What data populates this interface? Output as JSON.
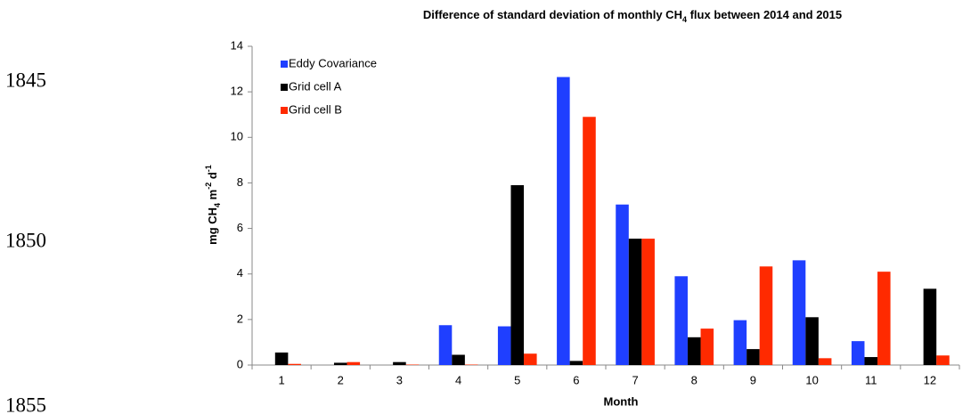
{
  "line_numbers": [
    "1845",
    "1850",
    "1855"
  ],
  "chart_data": {
    "type": "bar",
    "title": [
      {
        "text": "Difference of standard deviation of monthly CH"
      },
      {
        "text": "4",
        "sub": true
      },
      {
        "text": " flux between 2014 and 2015"
      }
    ],
    "ylabel": [
      {
        "text": "mg CH"
      },
      {
        "text": "4",
        "sub": true
      },
      {
        "text": " m"
      },
      {
        "text": "-2",
        "sup": true
      },
      {
        "text": " d"
      },
      {
        "text": "-1",
        "sup": true
      }
    ],
    "xlabel": "Month",
    "categories": [
      "1",
      "2",
      "3",
      "4",
      "5",
      "6",
      "7",
      "8",
      "9",
      "10",
      "11",
      "12"
    ],
    "series": [
      {
        "name": "Eddy Covariance",
        "color": "#1f3fff",
        "values": [
          0,
          0,
          0,
          1.75,
          1.7,
          12.65,
          7.05,
          3.9,
          1.97,
          4.6,
          1.05,
          0
        ]
      },
      {
        "name": "Grid cell A",
        "color": "#000000",
        "values": [
          0.55,
          0.1,
          0.13,
          0.45,
          7.9,
          0.18,
          5.55,
          1.22,
          0.7,
          2.1,
          0.35,
          3.35
        ]
      },
      {
        "name": "Grid cell B",
        "color": "#ff2a00",
        "values": [
          0.05,
          0.13,
          0.02,
          0.02,
          0.5,
          10.9,
          5.55,
          1.6,
          4.33,
          0.3,
          4.1,
          0.42
        ]
      }
    ],
    "ylim": [
      0,
      14
    ],
    "yticks": [
      0,
      2,
      4,
      6,
      8,
      10,
      12,
      14
    ],
    "grid": false,
    "legend": "top-left"
  }
}
